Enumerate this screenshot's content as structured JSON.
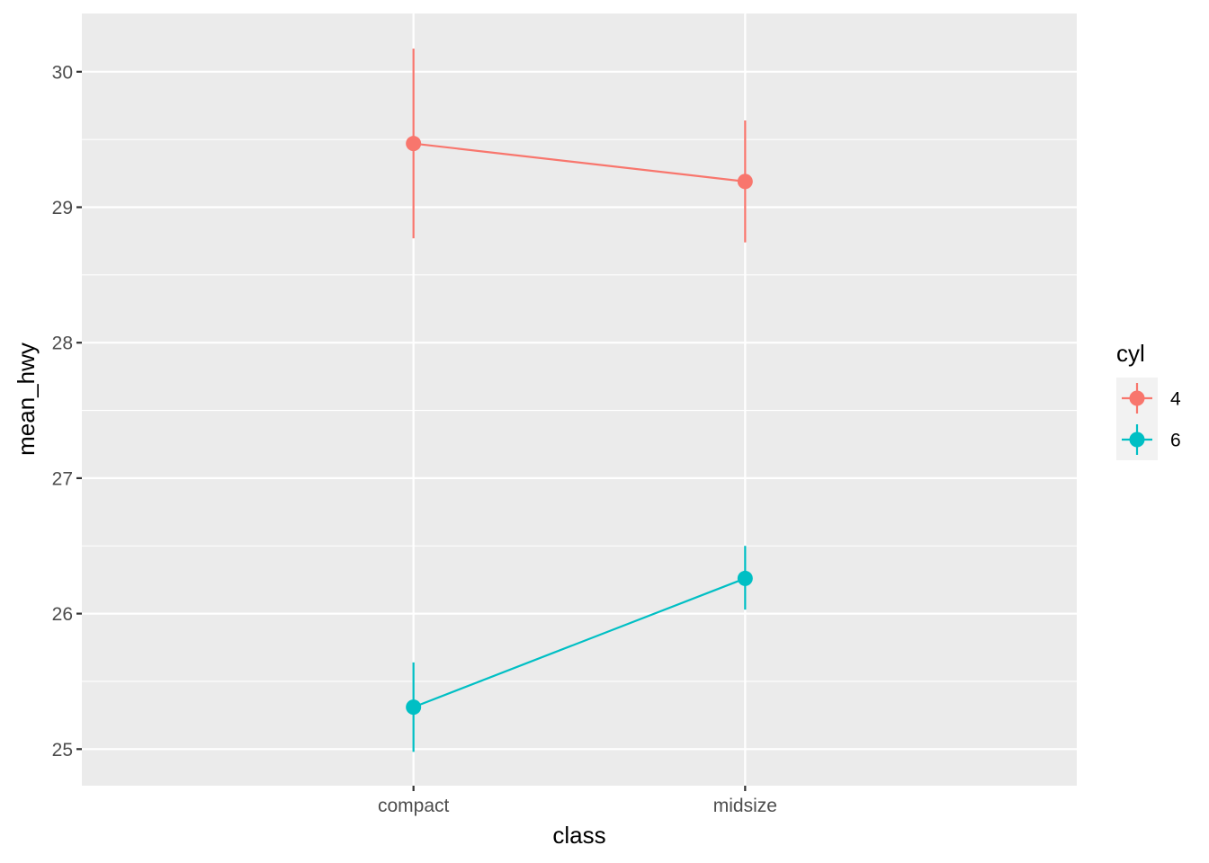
{
  "chart_data": {
    "type": "line",
    "xlabel": "class",
    "ylabel": "mean_hwy",
    "categories": [
      "compact",
      "midsize"
    ],
    "ylim": [
      24.73,
      30.43
    ],
    "y_ticks": [
      25,
      26,
      27,
      28,
      29,
      30
    ],
    "grid": true,
    "legend": {
      "title": "cyl",
      "position": "right"
    },
    "series": [
      {
        "name": "4",
        "color": "#F8766D",
        "values": [
          29.47,
          29.19
        ],
        "error_low": [
          28.77,
          28.74
        ],
        "error_high": [
          30.17,
          29.64
        ]
      },
      {
        "name": "6",
        "color": "#00BFC4",
        "values": [
          25.31,
          26.26
        ],
        "error_low": [
          24.98,
          26.03
        ],
        "error_high": [
          25.64,
          26.5
        ]
      }
    ]
  }
}
